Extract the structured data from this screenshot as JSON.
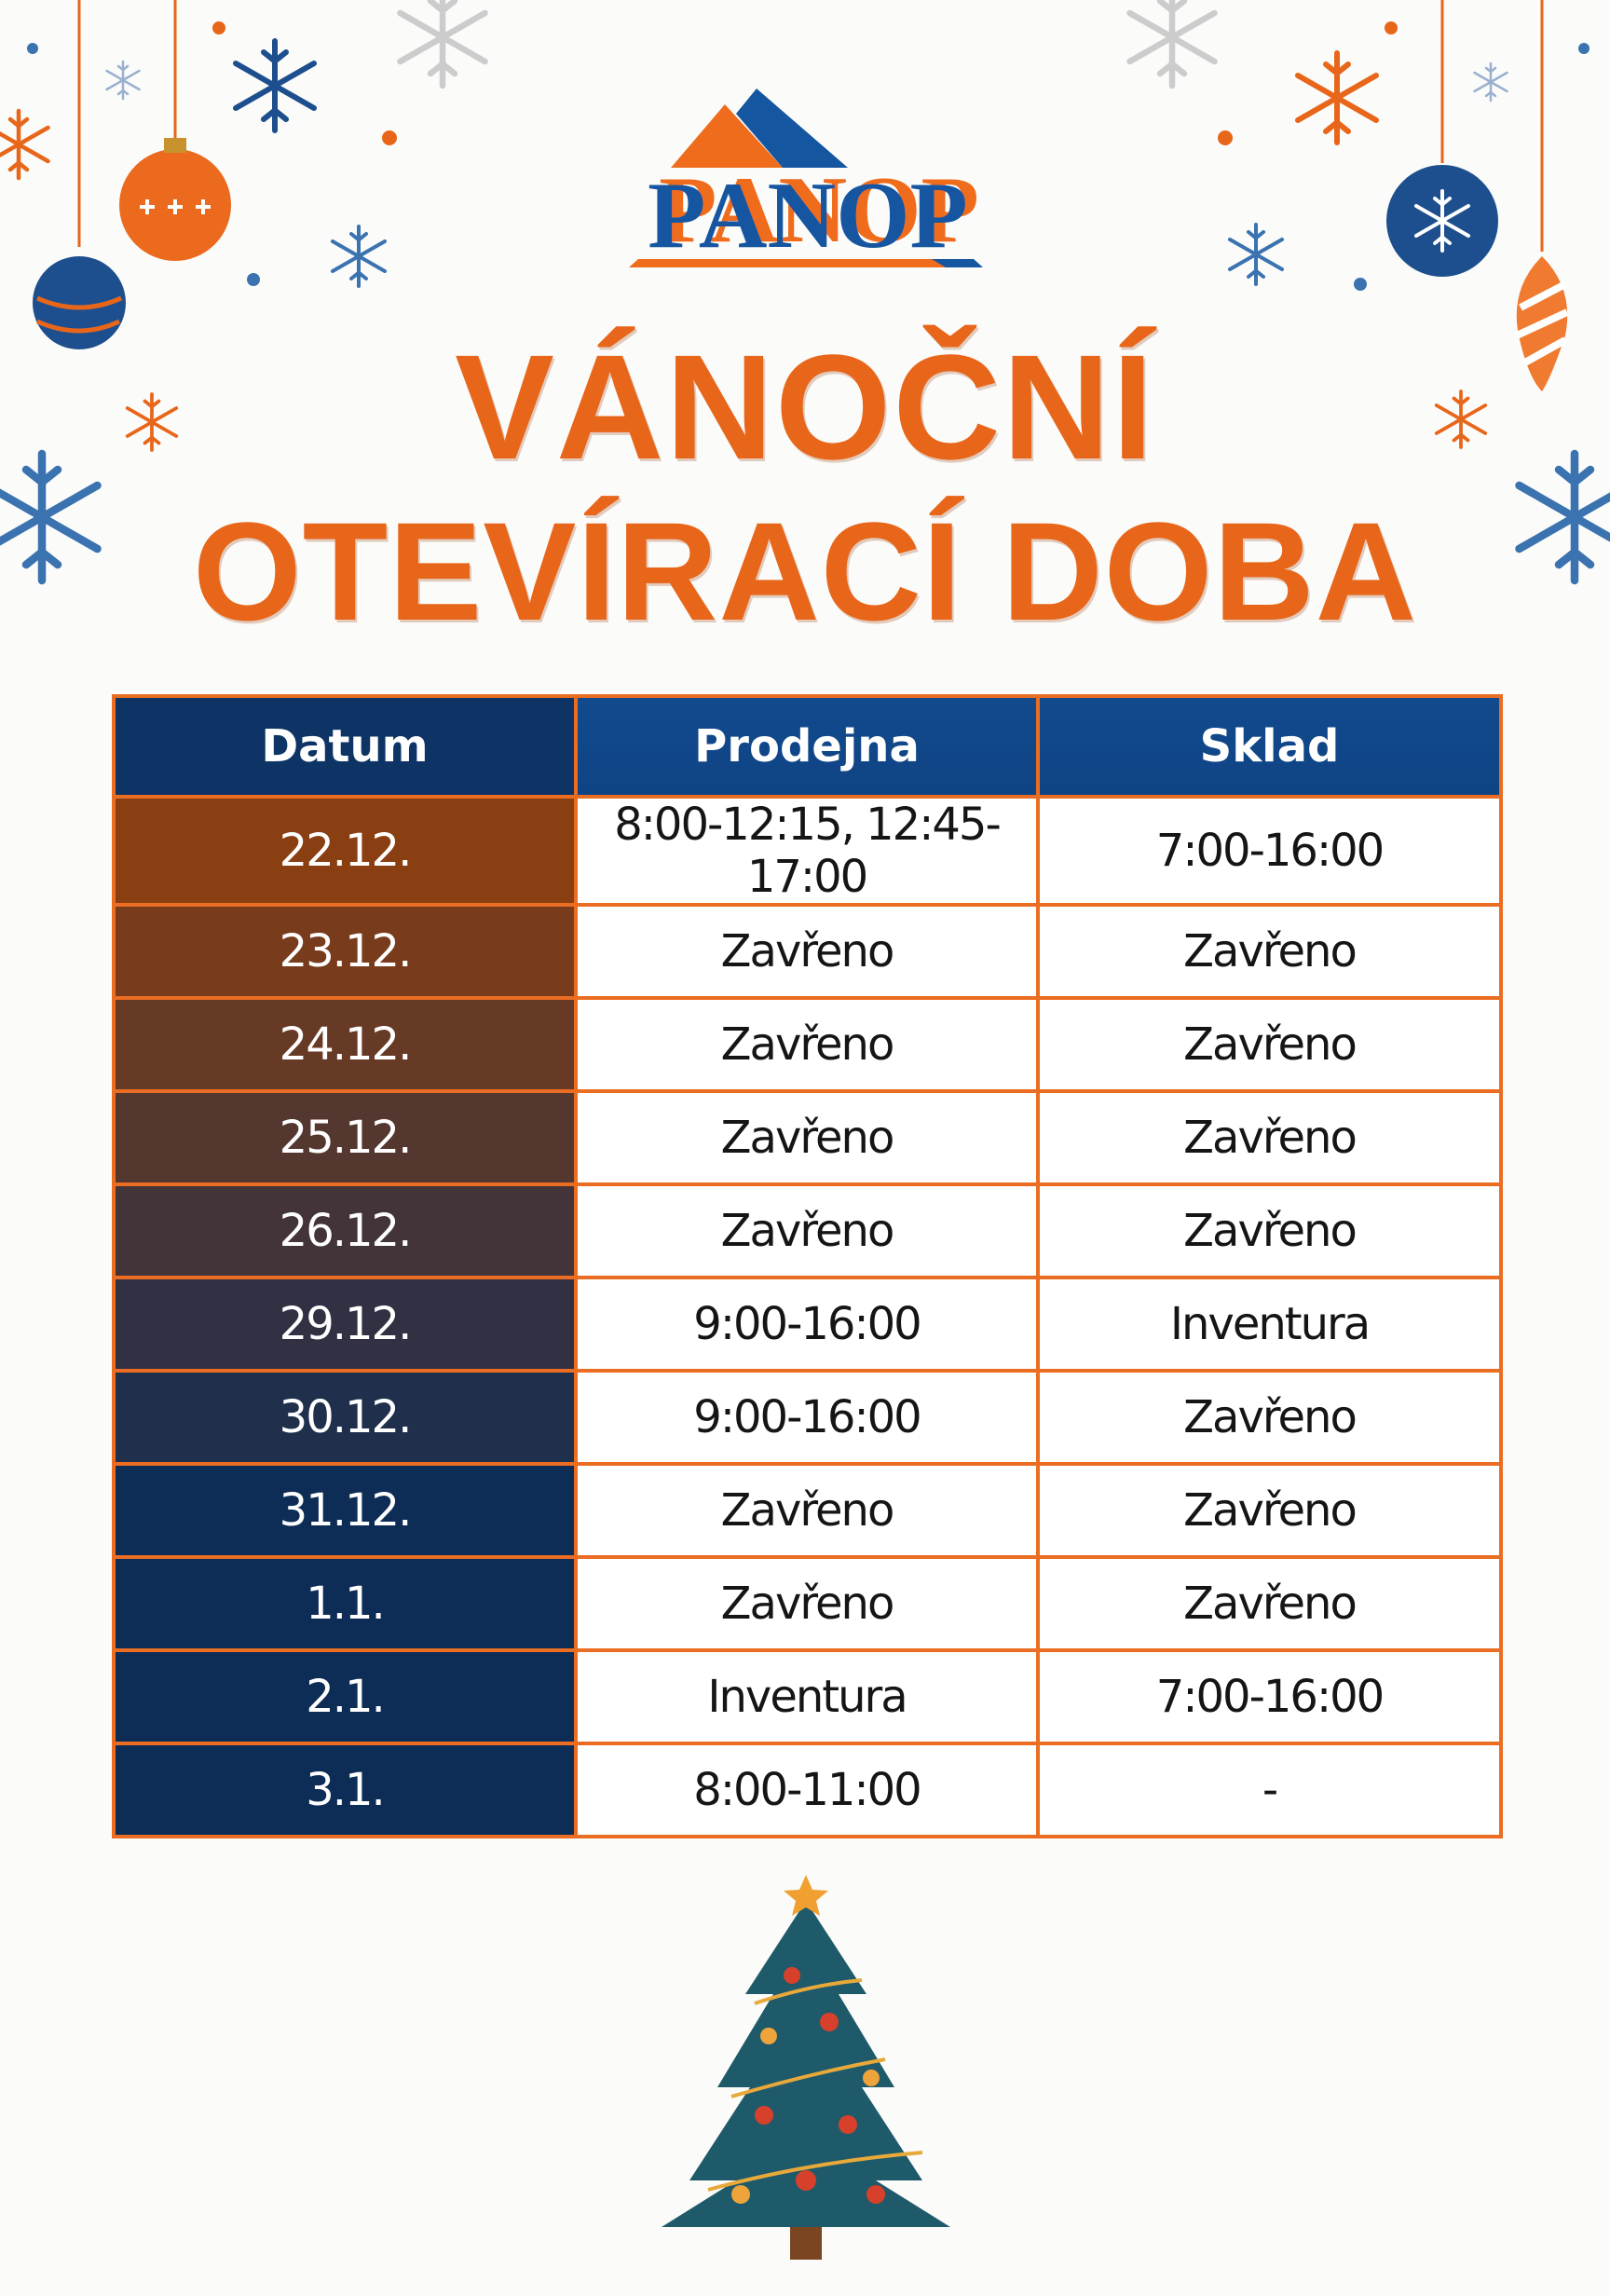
{
  "logo": {
    "text": "PANOP",
    "colors": {
      "orange": "#ef6c1c",
      "blue": "#1456a0"
    }
  },
  "title": {
    "line1": "VÁNOČNÍ",
    "line2": "OTEVÍRACÍ DOBA",
    "color": "#e8661a"
  },
  "table": {
    "headers": [
      "Datum",
      "Prodejna",
      "Sklad"
    ],
    "rows": [
      [
        "22.12.",
        "8:00-12:15, 12:45-17:00",
        "7:00-16:00"
      ],
      [
        "23.12.",
        "Zavřeno",
        "Zavřeno"
      ],
      [
        "24.12.",
        "Zavřeno",
        "Zavřeno"
      ],
      [
        "25.12.",
        "Zavřeno",
        "Zavřeno"
      ],
      [
        "26.12.",
        "Zavřeno",
        "Zavřeno"
      ],
      [
        "29.12.",
        "9:00-16:00",
        "Inventura"
      ],
      [
        "30.12.",
        "9:00-16:00",
        "Zavřeno"
      ],
      [
        "31.12.",
        "Zavřeno",
        "Zavřeno"
      ],
      [
        "1.1.",
        "Zavřeno",
        "Zavřeno"
      ],
      [
        "2.1.",
        "Inventura",
        "7:00-16:00"
      ],
      [
        "3.1.",
        "8:00-11:00",
        "-"
      ]
    ],
    "colors": {
      "border": "#ea6d22",
      "header": "#124a8e",
      "date_top": "#8a3f12",
      "date_bottom": "#0d2c56"
    }
  },
  "decorations": [
    "snowflake-icon",
    "ornament-icon",
    "christmas-tree-icon"
  ]
}
